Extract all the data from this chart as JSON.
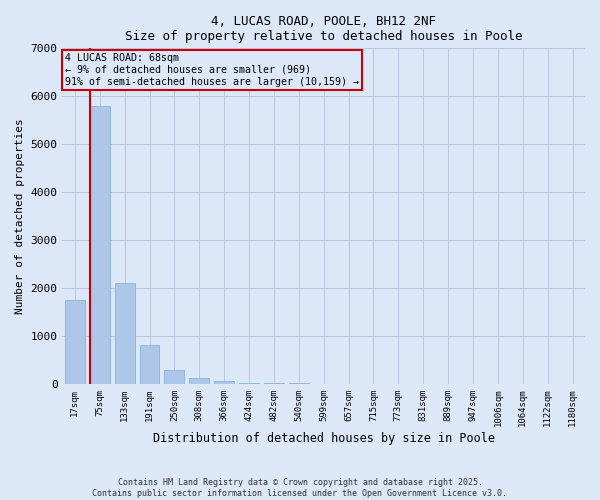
{
  "title_line1": "4, LUCAS ROAD, POOLE, BH12 2NF",
  "title_line2": "Size of property relative to detached houses in Poole",
  "xlabel": "Distribution of detached houses by size in Poole",
  "ylabel": "Number of detached properties",
  "categories": [
    "17sqm",
    "75sqm",
    "133sqm",
    "191sqm",
    "250sqm",
    "308sqm",
    "366sqm",
    "424sqm",
    "482sqm",
    "540sqm",
    "599sqm",
    "657sqm",
    "715sqm",
    "773sqm",
    "831sqm",
    "889sqm",
    "947sqm",
    "1006sqm",
    "1064sqm",
    "1122sqm",
    "1180sqm"
  ],
  "values": [
    1750,
    5800,
    2100,
    820,
    290,
    130,
    60,
    25,
    15,
    10,
    8,
    5,
    4,
    3,
    3,
    2,
    2,
    2,
    1,
    1,
    1
  ],
  "bar_color": "#aec6e8",
  "bar_edge_color": "#7aaed4",
  "annotation_box_text": "4 LUCAS ROAD: 68sqm\n← 9% of detached houses are smaller (969)\n91% of semi-detached houses are larger (10,159) →",
  "vline_bar_index": 1,
  "vline_color": "#cc0000",
  "ylim": [
    0,
    7000
  ],
  "yticks": [
    0,
    1000,
    2000,
    3000,
    4000,
    5000,
    6000,
    7000
  ],
  "bg_color": "#dce8f8",
  "footer_line1": "Contains HM Land Registry data © Crown copyright and database right 2025.",
  "footer_line2": "Contains public sector information licensed under the Open Government Licence v3.0.",
  "grid_color": "#b8c8e0",
  "box_edge_color": "#cc0000",
  "title_fontsize": 9,
  "subtitle_fontsize": 8.5
}
